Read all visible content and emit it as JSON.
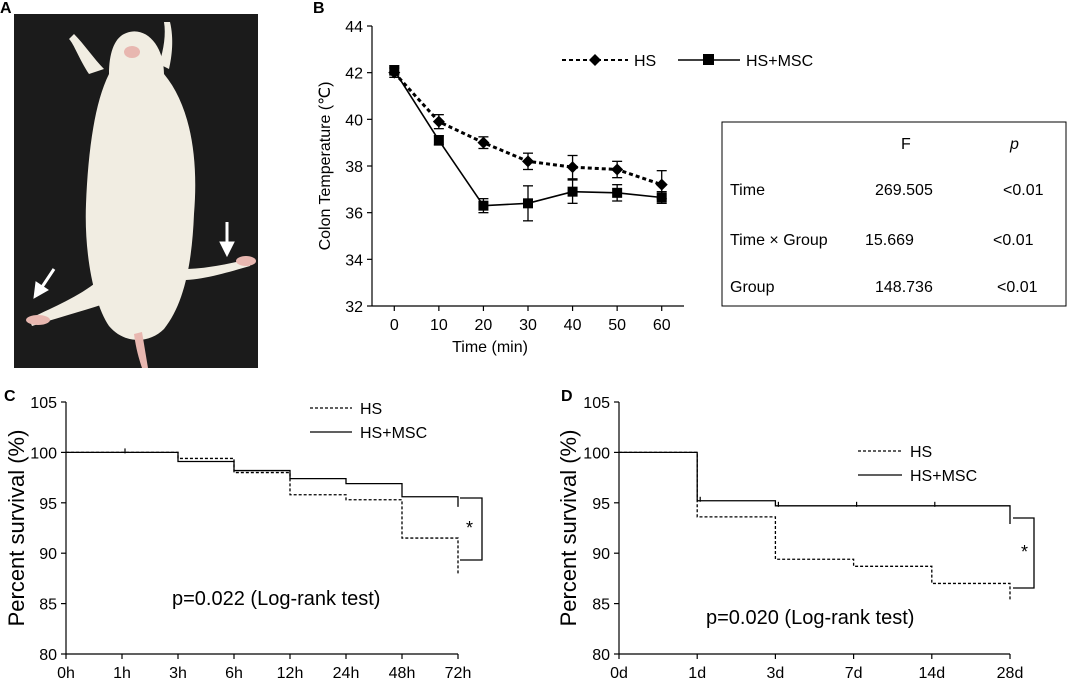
{
  "panels": {
    "a": "A",
    "b": "B",
    "c": "C",
    "d": "D"
  },
  "photo": {
    "subject": "rat-photo",
    "colors": {
      "background": "#1b1b1b",
      "fur": "#f1ede2",
      "skin": "#e8b7b0"
    }
  },
  "chart_data": [
    {
      "id": "B",
      "type": "line",
      "xlabel": "Time (min)",
      "ylabel": "Colon Temperature (℃)",
      "x": [
        0,
        10,
        20,
        30,
        40,
        50,
        60
      ],
      "xlim": [
        -5,
        65
      ],
      "ylim": [
        32,
        44
      ],
      "yticks": [
        32,
        34,
        36,
        38,
        40,
        42,
        44
      ],
      "series": [
        {
          "name": "HS",
          "style": "dashed",
          "marker": "diamond",
          "values": [
            42.0,
            39.9,
            39.0,
            38.2,
            37.95,
            37.85,
            37.2
          ],
          "errors": [
            0.2,
            0.3,
            0.25,
            0.35,
            0.5,
            0.35,
            0.6
          ]
        },
        {
          "name": "HS+MSC",
          "style": "solid",
          "marker": "square",
          "values": [
            42.1,
            39.1,
            36.3,
            36.4,
            36.9,
            36.85,
            36.65
          ],
          "errors": [
            0.2,
            0.2,
            0.3,
            0.75,
            0.5,
            0.35,
            0.25
          ]
        }
      ],
      "legend": "top",
      "table": {
        "headers": [
          "",
          "F",
          "p"
        ],
        "rows": [
          [
            "Time",
            "269.505",
            "<0.01"
          ],
          [
            "Time × Group",
            "15.669",
            "<0.01"
          ],
          [
            "Group",
            "148.736",
            "<0.01"
          ]
        ]
      }
    },
    {
      "id": "C",
      "type": "line",
      "subtype": "kaplan-meier",
      "xlabel": "",
      "ylabel": "Percent survival (%)",
      "categories": [
        "0h",
        "1h",
        "3h",
        "6h",
        "12h",
        "24h",
        "48h",
        "72h"
      ],
      "ylim": [
        80,
        105
      ],
      "yticks": [
        80,
        85,
        90,
        95,
        100,
        105
      ],
      "series": [
        {
          "name": "HS",
          "style": "dashed",
          "values": [
            100,
            100,
            99.4,
            98.0,
            95.8,
            95.3,
            91.5,
            87.8
          ]
        },
        {
          "name": "HS+MSC",
          "style": "solid",
          "values": [
            100,
            100,
            99.1,
            98.2,
            97.4,
            96.9,
            95.6,
            94.6
          ]
        }
      ],
      "annotation": "p=0.022 (Log-rank test)",
      "significance": "*",
      "legend": "top-right"
    },
    {
      "id": "D",
      "type": "line",
      "subtype": "kaplan-meier",
      "xlabel": "",
      "ylabel": "Percent survival (%)",
      "categories": [
        "0d",
        "1d",
        "3d",
        "7d",
        "14d",
        "28d"
      ],
      "ylim": [
        80,
        105
      ],
      "yticks": [
        80,
        85,
        90,
        95,
        100,
        105
      ],
      "series": [
        {
          "name": "HS",
          "style": "dashed",
          "values": [
            100,
            93.6,
            89.4,
            88.7,
            87.0,
            85.3
          ]
        },
        {
          "name": "HS+MSC",
          "style": "solid",
          "values": [
            100,
            95.2,
            94.7,
            94.7,
            94.7,
            92.9
          ]
        }
      ],
      "annotation": "p=0.020 (Log-rank test)",
      "significance": "*",
      "legend": "top-right"
    }
  ]
}
